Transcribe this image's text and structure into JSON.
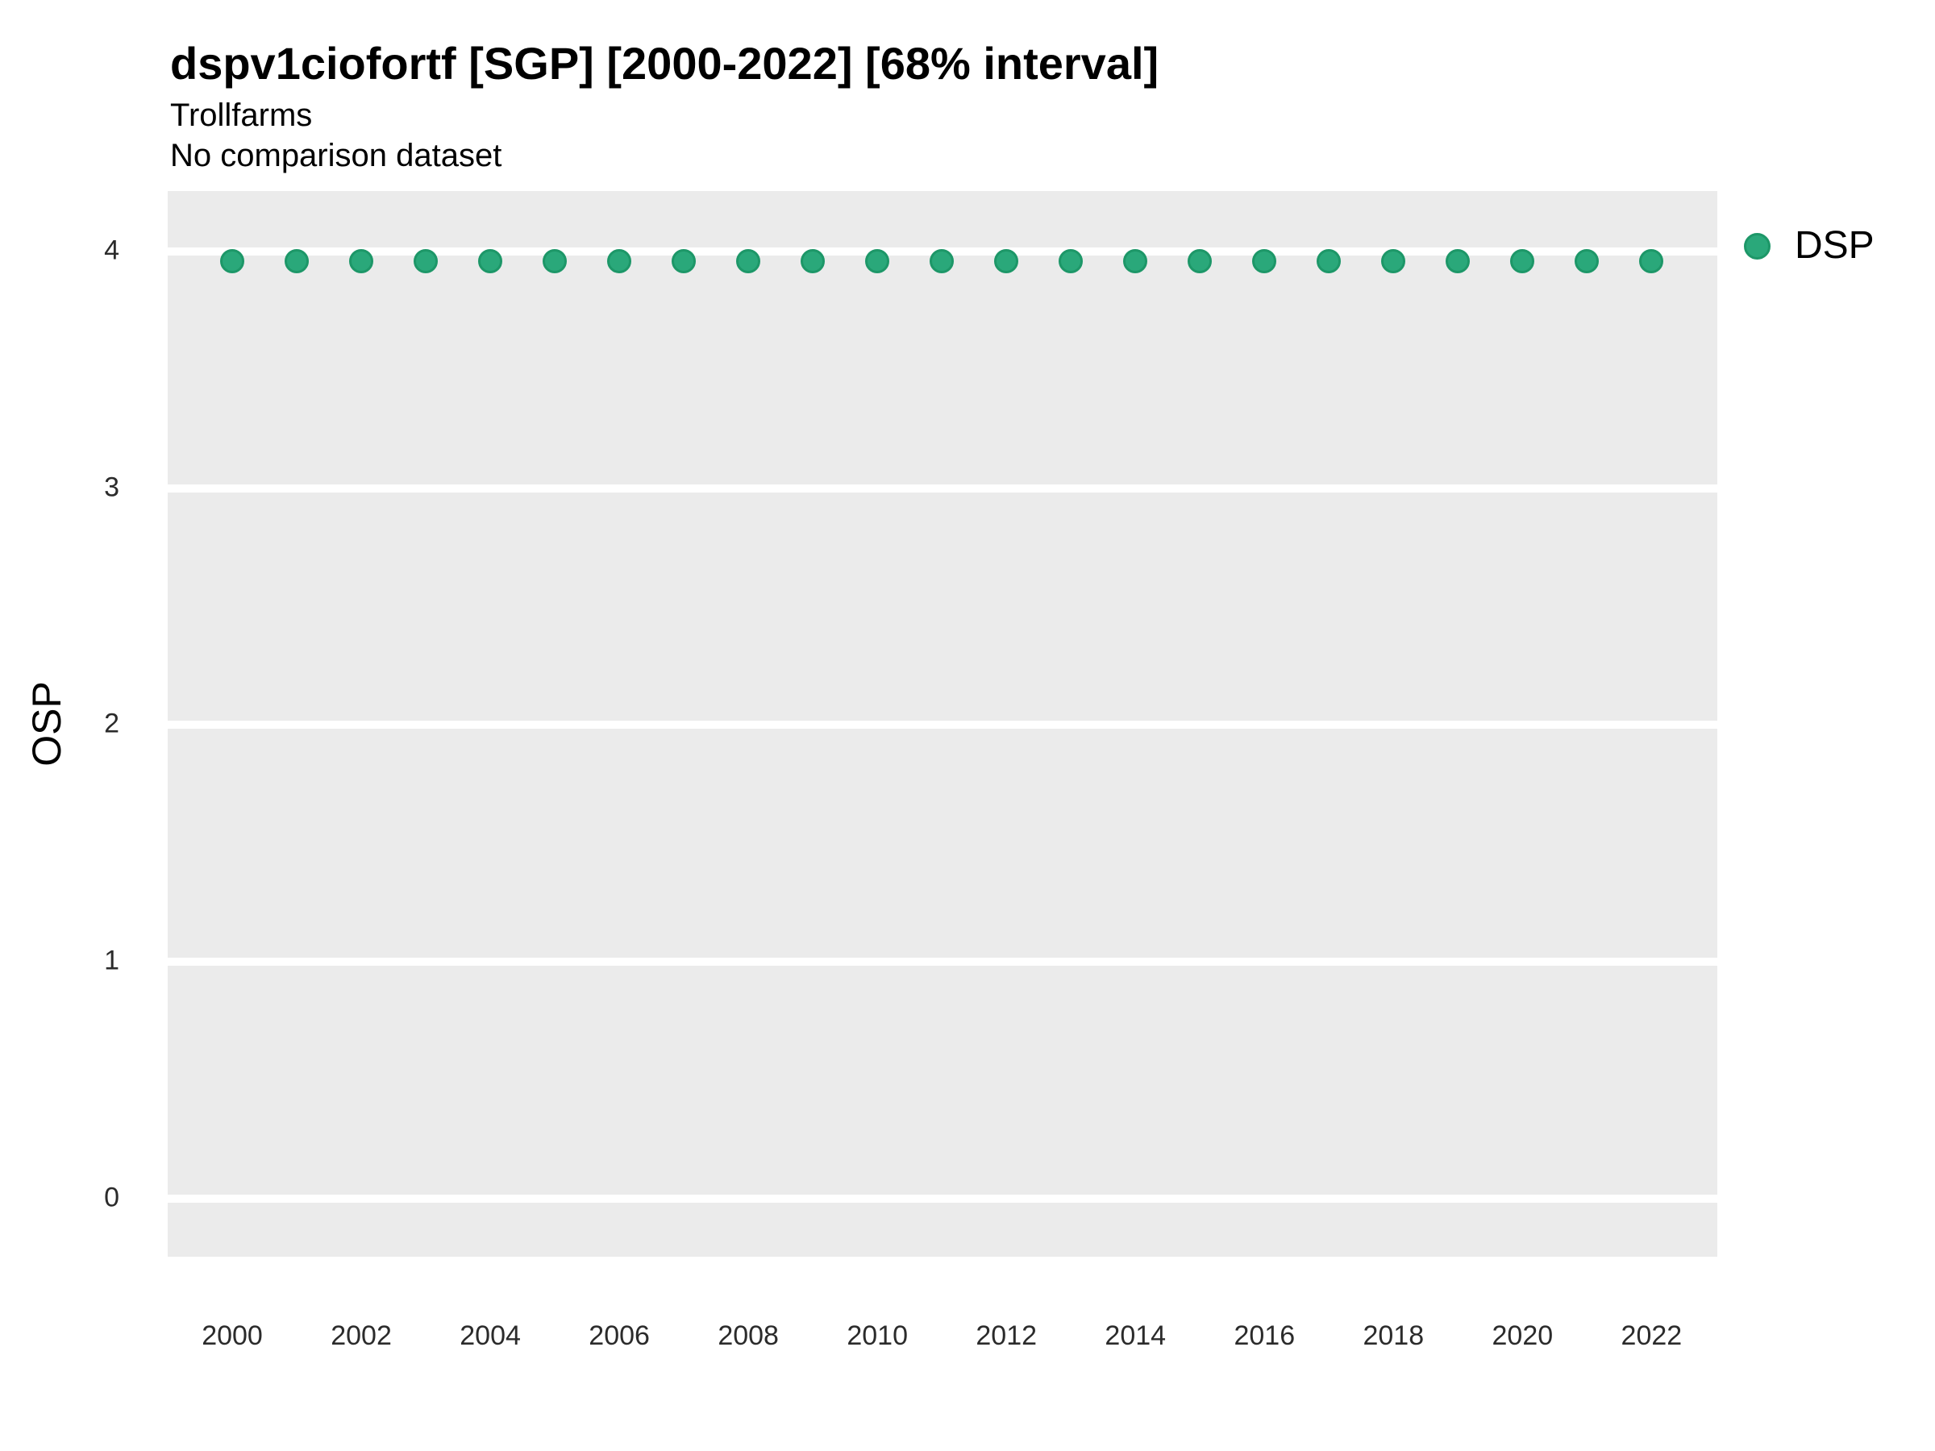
{
  "header": {
    "title": "dspv1ciofortf [SGP] [2000-2022] [68% interval]",
    "subtitle": "Trollfarms",
    "comparison_note": "No comparison dataset"
  },
  "legend": {
    "position": "right-top",
    "items": [
      {
        "label": "DSP",
        "marker": "circle-icon",
        "fill": "#2AA87A",
        "stroke": "#1D9768"
      }
    ]
  },
  "colors": {
    "point_fill": "#2AA87A",
    "point_stroke": "#1D9768",
    "panel_background": "#EBEBEB",
    "gridline": "#FFFFFF",
    "text": "#000000",
    "tick_text": "#2b2b2b"
  },
  "chart_data": {
    "type": "scatter",
    "title": "dspv1ciofortf [SGP] [2000-2022] [68% interval]",
    "subtitle": "Trollfarms",
    "note": "No comparison dataset",
    "xlabel": "",
    "ylabel": "OSP",
    "x": [
      2000,
      2001,
      2002,
      2003,
      2004,
      2005,
      2006,
      2007,
      2008,
      2009,
      2010,
      2011,
      2012,
      2013,
      2014,
      2015,
      2016,
      2017,
      2018,
      2019,
      2020,
      2021,
      2022
    ],
    "series": [
      {
        "name": "DSP",
        "values": [
          3.96,
          3.96,
          3.96,
          3.96,
          3.96,
          3.96,
          3.96,
          3.96,
          3.96,
          3.96,
          3.96,
          3.96,
          3.96,
          3.96,
          3.96,
          3.96,
          3.96,
          3.96,
          3.96,
          3.96,
          3.96,
          3.96,
          3.96
        ]
      }
    ],
    "xticks": [
      2000,
      2002,
      2004,
      2006,
      2008,
      2010,
      2012,
      2014,
      2016,
      2018,
      2020,
      2022
    ],
    "yticks": [
      0,
      1,
      2,
      3,
      4
    ],
    "xlim": [
      1999.0,
      2023.02
    ],
    "ylim": [
      -0.245,
      4.255
    ],
    "grid": "horizontal-major-only",
    "legend_position": "right-top"
  }
}
